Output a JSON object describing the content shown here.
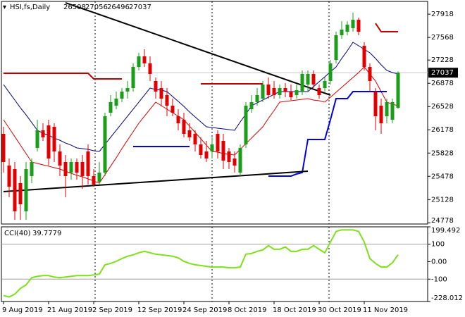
{
  "chart_data": [
    {
      "type": "candlestick",
      "title": "HSI,fs,Daily",
      "categories": [
        "9 Aug 2019",
        null,
        null,
        null,
        null,
        null,
        null,
        null,
        "21 Aug 2019",
        null,
        null,
        null,
        null,
        null,
        null,
        null,
        "2 Sep 2019",
        null,
        null,
        null,
        null,
        null,
        null,
        null,
        "12 Sep 2019",
        null,
        null,
        null,
        null,
        null,
        null,
        null,
        "24 Sep 2019",
        null,
        null,
        null,
        null,
        null,
        null,
        null,
        "8 Oct 2019",
        null,
        null,
        null,
        null,
        null,
        null,
        null,
        "18 Oct 2019",
        null,
        null,
        null,
        null,
        null,
        null,
        null,
        "30 Oct 2019",
        null,
        null,
        null,
        null,
        null,
        null,
        null,
        "11 Nov 2019",
        null,
        null,
        null,
        null,
        null,
        null
      ],
      "open": [
        26117,
        25640,
        25587,
        25375,
        24951,
        25481,
        25905,
        26170,
        26244,
        26223,
        25852,
        25693,
        25534,
        25693,
        25693,
        25852,
        25481,
        25396,
        25534,
        26435,
        26541,
        26647,
        26753,
        26806,
        27124,
        27283,
        27177,
        26912,
        26806,
        26700,
        26541,
        26382,
        26329,
        26170,
        26117,
        25958,
        25852,
        25852,
        26117,
        26011,
        25852,
        25746,
        25534,
        25958,
        26488,
        26594,
        26647,
        26859,
        26806,
        26700,
        26806,
        26753,
        26700,
        26753,
        26859,
        27018,
        26806,
        26806,
        26912,
        27230,
        27601,
        27654,
        27707,
        27834,
        27442,
        27124,
        26753,
        26541,
        26382,
        26329,
        26508
      ],
      "high": [
        26223,
        25746,
        25693,
        25481,
        25693,
        25746,
        26329,
        26276,
        26329,
        26276,
        25958,
        25799,
        25746,
        25746,
        25799,
        25958,
        25587,
        25693,
        26435,
        26700,
        26753,
        26806,
        26912,
        27177,
        27336,
        27389,
        27283,
        26965,
        26912,
        26806,
        26647,
        26488,
        26435,
        26276,
        26170,
        26064,
        26011,
        26064,
        26170,
        26117,
        25905,
        25852,
        25958,
        26594,
        26700,
        26806,
        26912,
        26965,
        26912,
        26859,
        26880,
        26859,
        26859,
        27071,
        27071,
        27071,
        26859,
        26965,
        27230,
        27654,
        27813,
        27813,
        27940,
        27866,
        27495,
        27177,
        26806,
        26647,
        26647,
        26647,
        27056
      ],
      "low": [
        25534,
        25163,
        24824,
        24824,
        24824,
        25375,
        25852,
        26011,
        25640,
        25693,
        25481,
        25163,
        25428,
        25428,
        25290,
        25354,
        25322,
        25354,
        25481,
        26382,
        26488,
        26594,
        26647,
        26753,
        27071,
        27124,
        26912,
        26647,
        26541,
        26382,
        26382,
        26170,
        26064,
        26011,
        25852,
        25746,
        25693,
        25746,
        25746,
        25587,
        25587,
        25534,
        25481,
        25905,
        26435,
        26541,
        26594,
        26647,
        26647,
        26647,
        26668,
        26626,
        26647,
        26700,
        26753,
        26806,
        26647,
        26753,
        26859,
        27177,
        27548,
        27601,
        27654,
        27601,
        27071,
        26753,
        26170,
        26117,
        26276,
        26276,
        26496
      ],
      "close": [
        25693,
        25322,
        24951,
        25057,
        25587,
        25693,
        26170,
        26064,
        25746,
        25852,
        25640,
        25481,
        25693,
        25534,
        25481,
        25481,
        25354,
        25534,
        26382,
        26594,
        26647,
        26753,
        26806,
        27124,
        27283,
        27177,
        27018,
        26753,
        26647,
        26541,
        26435,
        26276,
        26117,
        26064,
        25958,
        25799,
        25746,
        25958,
        25852,
        25714,
        25693,
        25640,
        25905,
        26541,
        26594,
        26700,
        26859,
        26700,
        26700,
        26806,
        26753,
        26668,
        26774,
        27018,
        27018,
        26859,
        26700,
        26912,
        27177,
        27601,
        27686,
        27760,
        27834,
        27654,
        27124,
        26912,
        26382,
        26276,
        26594,
        26594,
        27037
      ],
      "up_color": "#1a9e1a",
      "down_color": "#e00000",
      "moving_averages": [
        {
          "color": "#000080",
          "values": [
            26859,
            26742,
            26626,
            26509,
            26403,
            26287,
            26170,
            26127,
            26096,
            26053,
            26020,
            25979,
            25947,
            25905,
            25894,
            25884,
            25863,
            25852,
            25958,
            26064,
            26170,
            26276,
            26382,
            26488,
            26594,
            26700,
            26806,
            26785,
            26774,
            26753,
            26679,
            26605,
            26530,
            26446,
            26371,
            26297,
            26223,
            26212,
            26202,
            26191,
            26181,
            26170,
            26297,
            26414,
            26541,
            26583,
            26626,
            26668,
            26711,
            26753,
            26753,
            26753,
            26753,
            26753,
            26753,
            26827,
            26901,
            26976,
            27050,
            27124,
            27251,
            27368,
            27495,
            27442,
            27389,
            27336,
            27251,
            27156,
            27071,
            27039,
            27018
          ]
        },
        {
          "color": "#d40000",
          "values": [
            26329,
            26202,
            26075,
            25947,
            25820,
            25693,
            25672,
            25651,
            25630,
            25608,
            25587,
            25555,
            25523,
            25492,
            25470,
            25439,
            25407,
            25375,
            25502,
            25630,
            25757,
            25894,
            26022,
            26149,
            26276,
            26382,
            26488,
            26594,
            26541,
            26488,
            26435,
            26382,
            26329,
            26234,
            26138,
            26043,
            25947,
            25852,
            25841,
            25820,
            25810,
            25799,
            25884,
            25969,
            26053,
            26138,
            26223,
            26350,
            26467,
            26594,
            26605,
            26615,
            26626,
            26636,
            26647,
            26626,
            26615,
            26594,
            26668,
            26742,
            26817,
            26891,
            26965,
            27039,
            27124,
            27018,
            26912,
            26753,
            26594,
            26562,
            26541
          ]
        }
      ],
      "stops": [
        {
          "color": "#c00000",
          "values": [
            27029,
            27029,
            27029,
            27029,
            27029,
            27029,
            27029,
            27029,
            27029,
            27029,
            27029,
            27029,
            27029,
            27029,
            27029,
            27029,
            26944,
            26944,
            26944,
            26944,
            26944,
            26944,
            null,
            null,
            null,
            null,
            null,
            null,
            null,
            null,
            null,
            null,
            null,
            null,
            null,
            26870,
            26870,
            26870,
            26870,
            26870,
            26870,
            26870,
            26870,
            26870,
            26870,
            26870,
            26870,
            null,
            null,
            null,
            null,
            null,
            null,
            null,
            null,
            null,
            null,
            null,
            null,
            null,
            null,
            null,
            null,
            null,
            null,
            null,
            27781,
            27654,
            27654,
            27654,
            27654
          ]
        },
        {
          "color": "#0000e0",
          "values": [
            null,
            null,
            null,
            null,
            null,
            null,
            null,
            null,
            null,
            null,
            null,
            null,
            null,
            null,
            null,
            null,
            null,
            null,
            null,
            null,
            null,
            null,
            null,
            25926,
            25926,
            25926,
            25926,
            25926,
            25926,
            25926,
            25926,
            25926,
            25926,
            25926,
            null,
            null,
            null,
            null,
            null,
            null,
            null,
            null,
            null,
            null,
            null,
            null,
            null,
            25481,
            25481,
            25481,
            25481,
            25481,
            25513,
            25534,
            26032,
            26032,
            26032,
            26032,
            26329,
            26647,
            26647,
            26647,
            26753,
            26753,
            26753,
            26753,
            26753,
            26753,
            26753,
            null,
            null
          ]
        }
      ],
      "trendlines": [
        {
          "x": [
            11,
            58
          ],
          "y": [
            28090,
            26700
          ]
        },
        {
          "x": [
            0,
            54
          ],
          "y": [
            25248,
            25555
          ]
        }
      ],
      "ylim": [
        24760,
        28110
      ],
      "yticks": [
        24778,
        25128,
        25478,
        25828,
        26178,
        26528,
        26878,
        27228,
        27568,
        27918
      ]
    },
    {
      "type": "line",
      "title": "CCI(40)",
      "color": "#7ee01a",
      "values": [
        -194,
        -202,
        -186,
        -153,
        -133,
        -92,
        -84,
        -80,
        -80,
        -88,
        -92,
        -88,
        -84,
        -80,
        -80,
        -80,
        -76,
        -71,
        -18,
        -10,
        2,
        18,
        31,
        39,
        51,
        59,
        51,
        43,
        39,
        35,
        31,
        22,
        2,
        -10,
        -18,
        -22,
        -27,
        -31,
        -31,
        -31,
        -35,
        -35,
        -31,
        43,
        47,
        59,
        67,
        92,
        71,
        71,
        84,
        59,
        59,
        71,
        71,
        92,
        71,
        51,
        112,
        173,
        182,
        182,
        182,
        173,
        112,
        18,
        -10,
        -31,
        -31,
        -6,
        39.7779
      ],
      "levels": [
        100,
        -100
      ],
      "ylim": [
        -228.012,
        199.492
      ],
      "yticks": [
        -228.012,
        -100,
        {
          "value": 0,
          "label": "0.00"
        },
        100,
        199.492
      ]
    }
  ]
}
